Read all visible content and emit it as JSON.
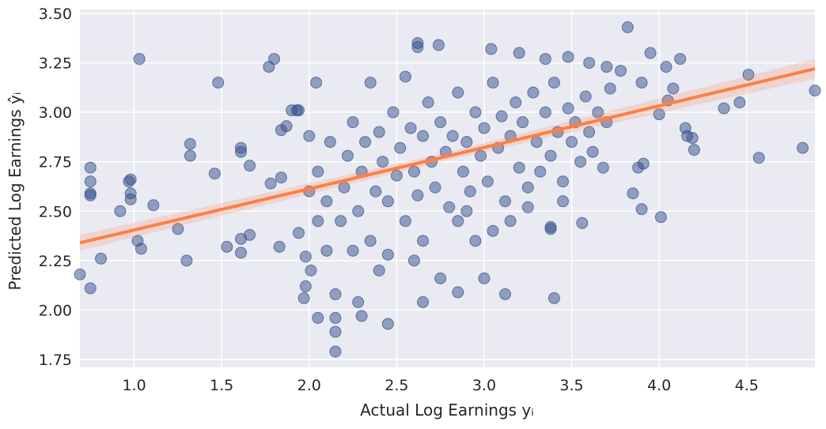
{
  "chart_data": {
    "type": "scatter",
    "x_label": "Actual Log Earnings yᵢ",
    "y_label": "Predicted Log Earnings ŷᵢ",
    "xlim": [
      0.69,
      4.89
    ],
    "ylim": [
      1.71,
      3.52
    ],
    "xticks": [
      {
        "value": 1.0,
        "label": "1.0"
      },
      {
        "value": 1.5,
        "label": "1.5"
      },
      {
        "value": 2.0,
        "label": "2.0"
      },
      {
        "value": 2.5,
        "label": "2.5"
      },
      {
        "value": 3.0,
        "label": "3.0"
      },
      {
        "value": 3.5,
        "label": "3.5"
      },
      {
        "value": 4.0,
        "label": "4.0"
      },
      {
        "value": 4.5,
        "label": "4.5"
      }
    ],
    "yticks": [
      {
        "value": 1.75,
        "label": "1.75"
      },
      {
        "value": 2.0,
        "label": "2.00"
      },
      {
        "value": 2.25,
        "label": "2.25"
      },
      {
        "value": 2.5,
        "label": "2.50"
      },
      {
        "value": 2.75,
        "label": "2.75"
      },
      {
        "value": 3.0,
        "label": "3.00"
      },
      {
        "value": 3.25,
        "label": "3.25"
      },
      {
        "value": 3.5,
        "label": "3.50"
      }
    ],
    "grid": true,
    "color": "#34508a",
    "x": [
      0.69,
      0.75,
      0.75,
      0.75,
      0.75,
      0.75,
      0.81,
      0.92,
      0.97,
      0.98,
      0.98,
      0.98,
      1.02,
      1.03,
      1.04,
      1.11,
      1.25,
      1.3,
      1.32,
      1.32,
      1.46,
      1.48,
      1.53,
      1.61,
      1.61,
      1.61,
      1.61,
      1.66,
      1.66,
      1.77,
      1.78,
      1.8,
      1.83,
      1.84,
      1.84,
      1.87,
      1.9,
      1.93,
      1.94,
      1.94,
      1.97,
      1.98,
      1.98,
      2.01,
      2.04,
      2.05,
      2.15,
      2.15,
      2.15,
      2.15,
      2.28,
      2.3,
      2.45,
      2.65,
      2.75,
      2.85,
      3.0,
      3.12,
      3.4,
      3.38,
      3.38,
      3.56,
      3.82,
      3.95,
      4.01,
      4.12,
      4.37,
      4.46,
      4.51,
      4.57,
      4.82,
      4.89,
      4.2,
      4.16,
      4.19,
      4.04,
      4.08,
      2.62,
      2.62,
      2.74,
      3.04,
      3.2,
      3.35,
      3.48,
      3.6,
      3.7,
      3.78,
      3.9,
      4.0,
      4.05,
      4.15,
      3.85,
      3.9,
      3.91,
      3.88,
      2.05,
      2.1,
      2.12,
      2.18,
      2.2,
      2.22,
      2.25,
      2.28,
      2.3,
      2.32,
      2.35,
      2.38,
      2.4,
      2.42,
      2.45,
      2.48,
      2.5,
      2.52,
      2.55,
      2.58,
      2.6,
      2.62,
      2.65,
      2.68,
      2.7,
      2.72,
      2.75,
      2.78,
      2.8,
      2.82,
      2.85,
      2.88,
      2.9,
      2.92,
      2.95,
      2.98,
      3.0,
      3.02,
      3.05,
      3.08,
      3.1,
      3.12,
      3.15,
      3.18,
      3.2,
      3.22,
      3.25,
      3.28,
      3.3,
      3.32,
      3.35,
      3.38,
      3.4,
      3.42,
      3.45,
      3.48,
      3.5,
      3.52,
      3.55,
      3.58,
      3.6,
      3.62,
      3.65,
      3.68,
      3.7,
      3.72,
      2.35,
      2.55,
      2.25,
      2.45,
      2.65,
      2.95,
      3.15,
      2.85,
      2.05,
      2.1,
      2.0,
      2.0,
      2.4,
      2.6,
      2.9,
      3.05,
      3.25,
      3.45
    ],
    "y": [
      2.18,
      2.11,
      2.72,
      2.65,
      2.59,
      2.58,
      2.26,
      2.5,
      2.65,
      2.66,
      2.59,
      2.56,
      2.35,
      3.27,
      2.31,
      2.53,
      2.41,
      2.25,
      2.84,
      2.78,
      2.69,
      3.15,
      2.32,
      2.82,
      2.8,
      2.36,
      2.29,
      2.38,
      2.73,
      3.23,
      2.64,
      3.27,
      2.32,
      2.67,
      2.91,
      2.93,
      3.01,
      3.01,
      3.01,
      2.39,
      2.06,
      2.12,
      2.27,
      2.2,
      3.15,
      1.96,
      1.96,
      1.89,
      1.79,
      2.08,
      2.04,
      1.97,
      1.93,
      2.04,
      2.16,
      2.09,
      2.16,
      2.08,
      2.06,
      2.41,
      2.42,
      2.44,
      3.43,
      3.3,
      2.47,
      3.27,
      3.02,
      3.05,
      3.19,
      2.77,
      2.82,
      3.11,
      2.81,
      2.88,
      2.87,
      3.23,
      3.12,
      3.35,
      3.33,
      3.34,
      3.32,
      3.3,
      3.27,
      3.28,
      3.25,
      3.23,
      3.21,
      3.15,
      2.99,
      3.06,
      2.92,
      2.59,
      2.51,
      2.74,
      2.72,
      2.7,
      2.55,
      2.85,
      2.45,
      2.62,
      2.78,
      2.95,
      2.5,
      2.7,
      2.85,
      2.35,
      2.6,
      2.9,
      2.75,
      2.55,
      3.0,
      2.68,
      2.82,
      2.45,
      2.92,
      2.7,
      2.58,
      2.88,
      3.05,
      2.75,
      2.62,
      2.95,
      2.8,
      2.52,
      2.88,
      3.1,
      2.7,
      2.85,
      2.6,
      3.0,
      2.78,
      2.92,
      2.65,
      3.15,
      2.82,
      2.98,
      2.55,
      2.88,
      3.05,
      2.72,
      2.95,
      2.62,
      3.1,
      2.85,
      2.7,
      3.0,
      2.78,
      3.15,
      2.9,
      2.65,
      3.02,
      2.85,
      2.95,
      2.75,
      3.08,
      2.9,
      2.8,
      3.0,
      2.72,
      2.95,
      3.12,
      3.15,
      3.18,
      2.3,
      2.28,
      2.35,
      2.35,
      2.45,
      2.45,
      2.45,
      2.3,
      2.6,
      2.88,
      2.2,
      2.25,
      2.5,
      2.4,
      2.52,
      2.55
    ],
    "fit": {
      "color": "#fd7f45",
      "x": [
        0.69,
        2.8,
        4.89
      ],
      "y": [
        2.34,
        2.78,
        3.22
      ],
      "lower": [
        2.3,
        2.76,
        3.17
      ],
      "upper": [
        2.38,
        2.8,
        3.27
      ]
    }
  }
}
